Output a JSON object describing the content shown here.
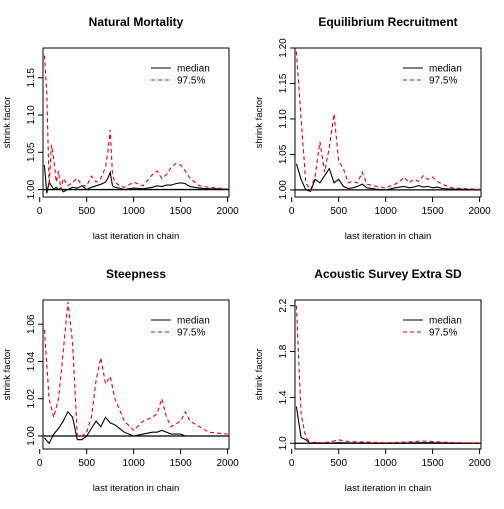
{
  "chart_data": [
    {
      "type": "line",
      "title": "Natural Mortality",
      "xlabel": "last iteration in chain",
      "ylabel": "shrink factor",
      "xlim": [
        0,
        2000
      ],
      "ylim": [
        0.99,
        1.19
      ],
      "xticks": [
        0,
        500,
        1000,
        1500,
        2000
      ],
      "yticks": [
        1.0,
        1.05,
        1.1,
        1.15
      ],
      "ytick_labels": [
        "1.00",
        "1.05",
        "1.10",
        "1.15"
      ],
      "reference_line": 1.0,
      "legend": "top-right",
      "x": [
        50,
        75,
        100,
        125,
        150,
        175,
        200,
        225,
        250,
        300,
        350,
        400,
        450,
        500,
        550,
        600,
        650,
        700,
        725,
        750,
        775,
        800,
        850,
        900,
        1000,
        1100,
        1200,
        1250,
        1300,
        1350,
        1400,
        1450,
        1500,
        1550,
        1600,
        1700,
        1800,
        1900,
        2000
      ],
      "series": [
        {
          "name": "median",
          "color": "#000000",
          "dash": "solid",
          "values": [
            1.033,
            0.995,
            1.01,
            1.005,
            1.0,
            1.003,
            1.0,
            1.002,
            0.997,
            1.0,
            1.003,
            1.002,
            1.005,
            1.0,
            1.003,
            1.005,
            1.007,
            1.01,
            1.015,
            1.023,
            1.005,
            1.003,
            1.002,
            1.0,
            1.002,
            1.001,
            1.003,
            1.005,
            1.004,
            1.006,
            1.006,
            1.008,
            1.009,
            1.008,
            1.004,
            1.002,
            1.001,
            1.001,
            1.0
          ]
        },
        {
          "name": "97.5%",
          "color": "#e8000b",
          "dash": "dashed",
          "values": [
            1.18,
            1.13,
            1.005,
            1.06,
            1.04,
            1.01,
            1.025,
            1.0,
            1.015,
            1.005,
            1.01,
            1.015,
            1.005,
            1.005,
            1.018,
            1.01,
            1.015,
            1.03,
            1.05,
            1.08,
            1.02,
            1.01,
            1.005,
            1.003,
            1.01,
            1.005,
            1.02,
            1.025,
            1.015,
            1.02,
            1.03,
            1.035,
            1.033,
            1.025,
            1.015,
            1.005,
            1.003,
            1.002,
            1.001
          ]
        }
      ]
    },
    {
      "type": "line",
      "title": "Equilibrium Recruitment",
      "xlabel": "last iteration in chain",
      "ylabel": "shrink factor",
      "xlim": [
        0,
        2000
      ],
      "ylim": [
        0.99,
        1.2
      ],
      "xticks": [
        0,
        500,
        1000,
        1500,
        2000
      ],
      "yticks": [
        1.0,
        1.05,
        1.1,
        1.15,
        1.2
      ],
      "ytick_labels": [
        "1.00",
        "1.05",
        "1.10",
        "1.15",
        "1.20"
      ],
      "reference_line": 1.0,
      "legend": "top-right",
      "x": [
        50,
        100,
        150,
        200,
        250,
        300,
        350,
        400,
        450,
        500,
        550,
        600,
        650,
        700,
        750,
        800,
        900,
        1000,
        1100,
        1150,
        1200,
        1250,
        1300,
        1350,
        1400,
        1450,
        1500,
        1550,
        1600,
        1700,
        1800,
        2000
      ],
      "series": [
        {
          "name": "median",
          "color": "#000000",
          "dash": "solid",
          "values": [
            1.037,
            1.015,
            1.0,
            0.998,
            1.015,
            1.01,
            1.02,
            1.03,
            1.01,
            1.015,
            1.005,
            1.002,
            1.003,
            1.005,
            1.008,
            1.003,
            1.001,
            1.0,
            1.003,
            1.004,
            1.005,
            1.003,
            1.004,
            1.006,
            1.004,
            1.005,
            1.003,
            1.004,
            1.002,
            1.001,
            1.001,
            1.0
          ]
        },
        {
          "name": "97.5%",
          "color": "#e8000b",
          "dash": "dashed",
          "values": [
            1.195,
            1.1,
            1.01,
            1.0,
            1.02,
            1.068,
            1.025,
            1.06,
            1.107,
            1.04,
            1.03,
            1.01,
            1.012,
            1.01,
            1.025,
            1.008,
            1.005,
            1.003,
            1.008,
            1.012,
            1.018,
            1.01,
            1.015,
            1.012,
            1.02,
            1.015,
            1.018,
            1.012,
            1.008,
            1.003,
            1.002,
            1.001
          ]
        }
      ]
    },
    {
      "type": "line",
      "title": "Steepness",
      "xlabel": "last iteration in chain",
      "ylabel": "shrink factor",
      "xlim": [
        0,
        2000
      ],
      "ylim": [
        0.993,
        1.073
      ],
      "xticks": [
        0,
        500,
        1000,
        1500,
        2000
      ],
      "yticks": [
        1.0,
        1.02,
        1.04,
        1.06
      ],
      "ytick_labels": [
        "1.00",
        "1.02",
        "1.04",
        "1.06"
      ],
      "reference_line": 1.0,
      "legend": "top-right",
      "x": [
        50,
        100,
        150,
        200,
        250,
        300,
        350,
        400,
        450,
        500,
        550,
        600,
        650,
        700,
        750,
        800,
        900,
        1000,
        1100,
        1200,
        1250,
        1300,
        1350,
        1400,
        1500,
        1550,
        1600,
        1700,
        1800,
        2000
      ],
      "series": [
        {
          "name": "median",
          "color": "#000000",
          "dash": "solid",
          "values": [
            0.999,
            0.996,
            1.001,
            1.004,
            1.008,
            1.013,
            1.01,
            0.998,
            0.998,
            1.0,
            1.004,
            1.008,
            1.005,
            1.01,
            1.007,
            1.006,
            1.002,
            1.0,
            1.001,
            1.002,
            1.002,
            1.003,
            1.002,
            1.001,
            1.001,
            1.0,
            1.0,
            1.0,
            1.0,
            1.0
          ]
        },
        {
          "name": "97.5%",
          "color": "#e8000b",
          "dash": "dashed",
          "values": [
            1.057,
            1.02,
            1.01,
            1.02,
            1.045,
            1.072,
            1.05,
            1.0,
            1.0,
            1.002,
            1.01,
            1.03,
            1.042,
            1.028,
            1.032,
            1.02,
            1.008,
            1.003,
            1.008,
            1.01,
            1.012,
            1.02,
            1.01,
            1.005,
            1.008,
            1.013,
            1.008,
            1.005,
            1.002,
            1.001
          ]
        }
      ]
    },
    {
      "type": "line",
      "title": "Acoustic Survey Extra SD",
      "xlabel": "last iteration in chain",
      "ylabel": "shrink factor",
      "xlim": [
        0,
        2000
      ],
      "ylim": [
        0.95,
        2.25
      ],
      "xticks": [
        0,
        500,
        1000,
        1500,
        2000
      ],
      "yticks": [
        1.0,
        1.4,
        1.8,
        2.2
      ],
      "ytick_labels": [
        "1.0",
        "1.4",
        "1.8",
        "2.2"
      ],
      "reference_line": 1.0,
      "legend": "top-right",
      "x": [
        50,
        100,
        150,
        200,
        250,
        300,
        400,
        500,
        600,
        800,
        1000,
        1200,
        1400,
        1500,
        1600,
        1800,
        2000
      ],
      "series": [
        {
          "name": "median",
          "color": "#000000",
          "dash": "solid",
          "values": [
            1.32,
            1.05,
            1.03,
            1.0,
            1.005,
            1.0,
            1.002,
            1.005,
            1.003,
            1.002,
            1.001,
            1.002,
            1.005,
            1.004,
            1.003,
            1.001,
            1.0
          ]
        },
        {
          "name": "97.5%",
          "color": "#e8000b",
          "dash": "dashed",
          "values": [
            2.2,
            1.25,
            1.05,
            1.005,
            1.01,
            1.005,
            1.01,
            1.03,
            1.015,
            1.01,
            1.005,
            1.01,
            1.02,
            1.015,
            1.01,
            1.005,
            1.002
          ]
        }
      ]
    }
  ]
}
